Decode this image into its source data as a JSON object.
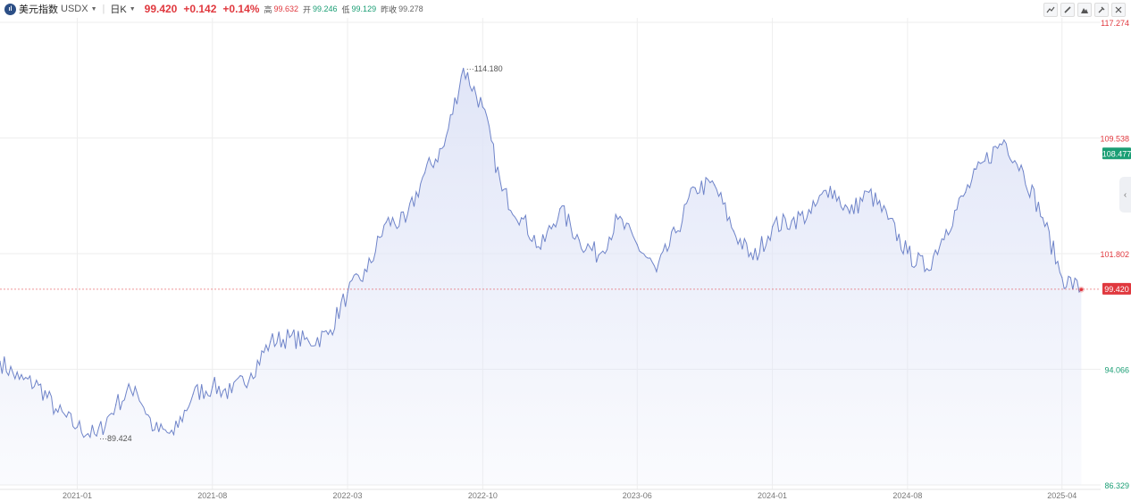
{
  "toolbar": {
    "symbol_name": "美元指数",
    "symbol_code": "USDX",
    "period": "日K",
    "last": "99.420",
    "change": "+0.142",
    "change_pct": "+0.14%",
    "high_label": "高",
    "high": "99.632",
    "open_label": "开",
    "open": "99.246",
    "low_label": "低",
    "low": "99.129",
    "prev_label": "昨收",
    "prev_close": "99.278",
    "tools": [
      "line-tool-icon",
      "pencil-icon",
      "mountain-icon",
      "pin-icon",
      "close-icon"
    ]
  },
  "colors": {
    "line": "#6f84c9",
    "fill_top": "#dfe4f7",
    "up": "#e0383e",
    "down": "#1a9e74",
    "grid": "#eeeeee"
  },
  "chart_data": {
    "type": "area",
    "series_name": "USDX 日K",
    "x_ticks": [
      "2021-01",
      "2021-08",
      "2022-03",
      "2022-10",
      "2023-06",
      "2024-01",
      "2024-08",
      "2025-04"
    ],
    "y_ticks": [
      {
        "value": "117.274",
        "color": "#e0383e"
      },
      {
        "value": "109.538",
        "color": "#e0383e"
      },
      {
        "value": "101.802",
        "color": "#e0383e"
      },
      {
        "value": "94.066",
        "color": "#1a9e74"
      },
      {
        "value": "86.329",
        "color": "#1a9e74"
      }
    ],
    "ylim": [
      86.329,
      117.274
    ],
    "x_range": [
      "2020-09",
      "2025-06"
    ],
    "max_label": "114.180",
    "min_label": "89.424",
    "last_price_tag": "99.420",
    "marker_tag": "108.477",
    "points": [
      [
        "2020-09",
        94.6
      ],
      [
        "2020-10",
        93.4
      ],
      [
        "2020-11",
        93.0
      ],
      [
        "2020-12",
        91.2
      ],
      [
        "2021-01",
        90.2
      ],
      [
        "2021-02",
        89.6
      ],
      [
        "2021-03",
        91.7
      ],
      [
        "2021-04",
        92.9
      ],
      [
        "2021-05",
        90.0
      ],
      [
        "2021-06",
        89.7
      ],
      [
        "2021-07",
        92.4
      ],
      [
        "2021-08",
        92.9
      ],
      [
        "2021-09",
        92.5
      ],
      [
        "2021-10",
        93.8
      ],
      [
        "2021-11",
        95.9
      ],
      [
        "2021-12",
        96.2
      ],
      [
        "2022-01",
        95.9
      ],
      [
        "2022-02",
        96.4
      ],
      [
        "2022-03",
        99.2
      ],
      [
        "2022-04",
        100.6
      ],
      [
        "2022-05",
        103.9
      ],
      [
        "2022-06",
        103.9
      ],
      [
        "2022-07",
        107.2
      ],
      [
        "2022-08",
        109.0
      ],
      [
        "2022-09",
        114.2
      ],
      [
        "2022-10",
        111.6
      ],
      [
        "2022-11",
        106.0
      ],
      [
        "2022-12",
        104.2
      ],
      [
        "2023-01",
        102.1
      ],
      [
        "2023-02",
        104.8
      ],
      [
        "2023-03",
        102.7
      ],
      [
        "2023-04",
        101.7
      ],
      [
        "2023-05",
        104.1
      ],
      [
        "2023-06",
        102.4
      ],
      [
        "2023-07",
        100.6
      ],
      [
        "2023-08",
        103.2
      ],
      [
        "2023-09",
        106.2
      ],
      [
        "2023-10",
        106.4
      ],
      [
        "2023-11",
        103.3
      ],
      [
        "2023-12",
        101.4
      ],
      [
        "2024-01",
        103.6
      ],
      [
        "2024-02",
        104.0
      ],
      [
        "2024-03",
        104.5
      ],
      [
        "2024-04",
        106.3
      ],
      [
        "2024-05",
        104.5
      ],
      [
        "2024-06",
        105.9
      ],
      [
        "2024-07",
        104.1
      ],
      [
        "2024-08",
        101.8
      ],
      [
        "2024-09",
        100.8
      ],
      [
        "2024-10",
        103.4
      ],
      [
        "2024-11",
        105.9
      ],
      [
        "2024-12",
        108.0
      ],
      [
        "2025-01",
        109.4
      ],
      [
        "2025-02",
        107.3
      ],
      [
        "2025-03",
        104.2
      ],
      [
        "2025-04",
        100.2
      ],
      [
        "2025-05",
        99.4
      ]
    ]
  }
}
